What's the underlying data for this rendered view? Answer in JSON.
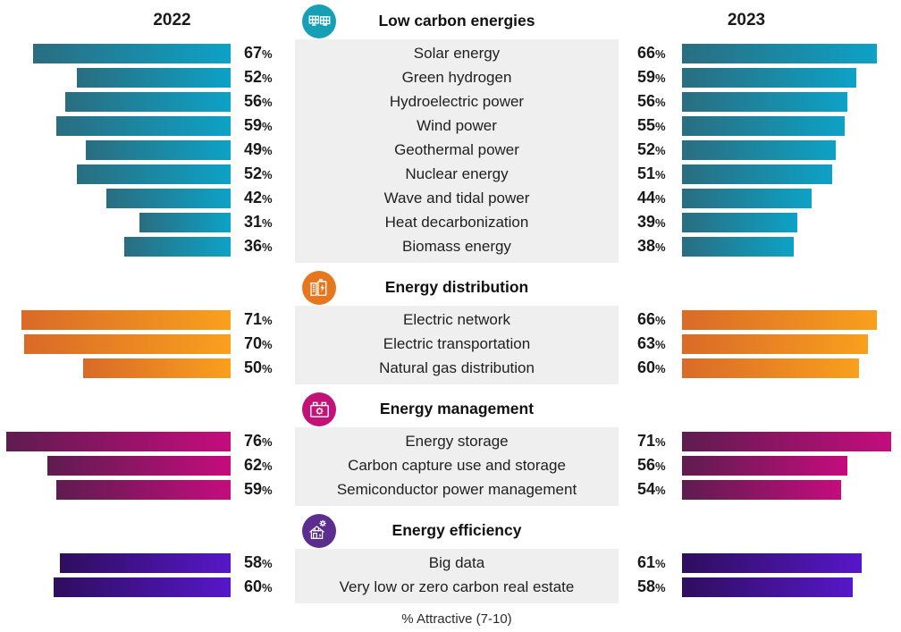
{
  "chart_data": {
    "type": "bar",
    "variant": "butterfly",
    "left_header": "2022",
    "right_header": "2023",
    "percent_suffix": "%",
    "footnote": "% Attractive (7-10)",
    "panel_background": "#efefef",
    "sections": [
      {
        "title": "Low carbon energies",
        "icon": "solar-panels-icon",
        "circle_color": "#15a0b6",
        "bar_gradient": [
          "#2a6d80",
          "#0da2c6"
        ],
        "categories": [
          "Solar energy",
          "Green hydrogen",
          "Hydroelectric power",
          "Wind power",
          "Geothermal power",
          "Nuclear energy",
          "Wave and tidal power",
          "Heat decarbonization",
          "Biomass energy"
        ],
        "series": [
          {
            "name": "2022",
            "values": [
              67,
              52,
              56,
              59,
              49,
              52,
              42,
              31,
              36
            ]
          },
          {
            "name": "2023",
            "values": [
              66,
              59,
              56,
              55,
              52,
              51,
              44,
              39,
              38
            ]
          }
        ]
      },
      {
        "title": "Energy distribution",
        "icon": "ev-charging-station-icon",
        "circle_color": "#e5781f",
        "bar_gradient": [
          "#d96a28",
          "#f9a01d"
        ],
        "categories": [
          "Electric network",
          "Electric transportation",
          "Natural gas distribution"
        ],
        "series": [
          {
            "name": "2022",
            "values": [
              71,
              70,
              50
            ]
          },
          {
            "name": "2023",
            "values": [
              66,
              63,
              60
            ]
          }
        ]
      },
      {
        "title": "Energy management",
        "icon": "battery-icon",
        "circle_color": "#c11277",
        "bar_gradient": [
          "#5e1c4f",
          "#c50c7d"
        ],
        "categories": [
          "Energy storage",
          "Carbon capture use and storage",
          "Semiconductor power management"
        ],
        "series": [
          {
            "name": "2022",
            "values": [
              76,
              62,
              59
            ]
          },
          {
            "name": "2023",
            "values": [
              71,
              56,
              54
            ]
          }
        ]
      },
      {
        "title": "Energy efficiency",
        "icon": "solar-house-icon",
        "circle_color": "#5b2d8e",
        "bar_gradient": [
          "#2e0e5e",
          "#5617c9"
        ],
        "categories": [
          "Big data",
          "Very low or zero carbon real estate"
        ],
        "series": [
          {
            "name": "2022",
            "values": [
              58,
              60
            ]
          },
          {
            "name": "2023",
            "values": [
              61,
              58
            ]
          }
        ]
      }
    ]
  }
}
